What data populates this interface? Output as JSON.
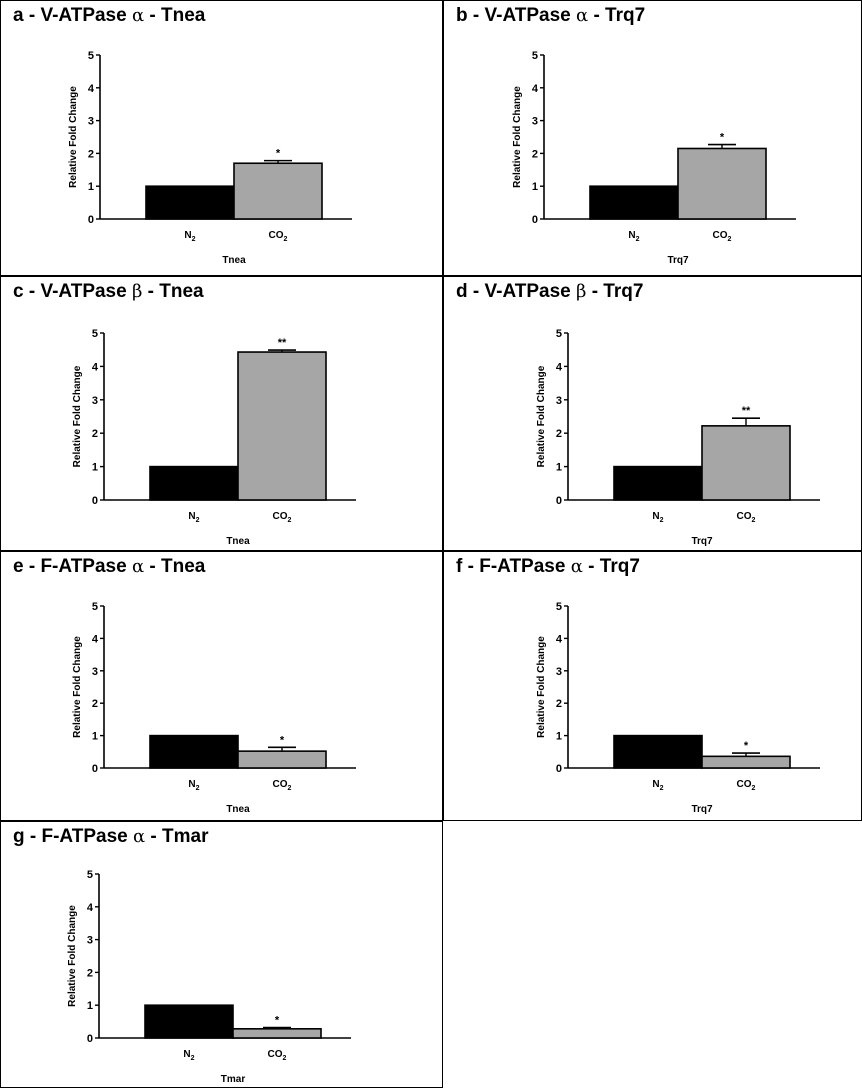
{
  "chart_data": [
    {
      "type": "bar",
      "panel": "a",
      "title_prefix": "a - V-ATPase ",
      "greek": "α",
      "title_suffix": " - Tnea",
      "ylabel": "Relative Fold Change",
      "xlabel": "Tnea",
      "ylim": [
        0,
        5
      ],
      "yticks": [
        "0",
        "1",
        "2",
        "3",
        "4",
        "5"
      ],
      "categories": [
        {
          "base": "N",
          "sub": "2"
        },
        {
          "base": "CO",
          "sub": "2"
        }
      ],
      "values": [
        1.0,
        1.7
      ],
      "errors": [
        0,
        0.08
      ],
      "significance": [
        "",
        "*"
      ],
      "bar_colors": [
        "#000000",
        "#a6a6a6"
      ]
    },
    {
      "type": "bar",
      "panel": "b",
      "title_prefix": "b - V-ATPase ",
      "greek": "α",
      "title_suffix": " - Trq7",
      "ylabel": "Relative Fold Change",
      "xlabel": "Trq7",
      "ylim": [
        0,
        5
      ],
      "yticks": [
        "0",
        "1",
        "2",
        "3",
        "4",
        "5"
      ],
      "categories": [
        {
          "base": "N",
          "sub": "2"
        },
        {
          "base": "CO",
          "sub": "2"
        }
      ],
      "values": [
        1.0,
        2.15
      ],
      "errors": [
        0,
        0.12
      ],
      "significance": [
        "",
        "*"
      ],
      "bar_colors": [
        "#000000",
        "#a6a6a6"
      ]
    },
    {
      "type": "bar",
      "panel": "c",
      "title_prefix": "c - V-ATPase ",
      "greek": "β",
      "title_suffix": " - Tnea",
      "ylabel": "Relative Fold Change",
      "xlabel": "Tnea",
      "ylim": [
        0,
        5
      ],
      "yticks": [
        "0",
        "1",
        "2",
        "3",
        "4",
        "5"
      ],
      "categories": [
        {
          "base": "N",
          "sub": "2"
        },
        {
          "base": "CO",
          "sub": "2"
        }
      ],
      "values": [
        1.0,
        4.43
      ],
      "errors": [
        0,
        0.06
      ],
      "significance": [
        "",
        "**"
      ],
      "bar_colors": [
        "#000000",
        "#a6a6a6"
      ]
    },
    {
      "type": "bar",
      "panel": "d",
      "title_prefix": "d - V-ATPase ",
      "greek": "β",
      "title_suffix": " - Trq7",
      "ylabel": "Relative Fold Change",
      "xlabel": "Trq7",
      "ylim": [
        0,
        5
      ],
      "yticks": [
        "0",
        "1",
        "2",
        "3",
        "4",
        "5"
      ],
      "categories": [
        {
          "base": "N",
          "sub": "2"
        },
        {
          "base": "CO",
          "sub": "2"
        }
      ],
      "values": [
        1.0,
        2.22
      ],
      "errors": [
        0,
        0.23
      ],
      "significance": [
        "",
        "**"
      ],
      "bar_colors": [
        "#000000",
        "#a6a6a6"
      ]
    },
    {
      "type": "bar",
      "panel": "e",
      "title_prefix": "e - F-ATPase ",
      "greek": "α",
      "title_suffix": " - Tnea",
      "ylabel": "Relative Fold Change",
      "xlabel": "Tnea",
      "ylim": [
        0,
        5
      ],
      "yticks": [
        "0",
        "1",
        "2",
        "3",
        "4",
        "5"
      ],
      "categories": [
        {
          "base": "N",
          "sub": "2"
        },
        {
          "base": "CO",
          "sub": "2"
        }
      ],
      "values": [
        1.0,
        0.52
      ],
      "errors": [
        0,
        0.12
      ],
      "significance": [
        "",
        "*"
      ],
      "bar_colors": [
        "#000000",
        "#a6a6a6"
      ]
    },
    {
      "type": "bar",
      "panel": "f",
      "title_prefix": "f - F-ATPase ",
      "greek": "α",
      "title_suffix": " - Trq7",
      "ylabel": "Relative Fold Change",
      "xlabel": "Trq7",
      "ylim": [
        0,
        5
      ],
      "yticks": [
        "0",
        "1",
        "2",
        "3",
        "4",
        "5"
      ],
      "categories": [
        {
          "base": "N",
          "sub": "2"
        },
        {
          "base": "CO",
          "sub": "2"
        }
      ],
      "values": [
        1.0,
        0.36
      ],
      "errors": [
        0,
        0.1
      ],
      "significance": [
        "",
        "*"
      ],
      "bar_colors": [
        "#000000",
        "#a6a6a6"
      ]
    },
    {
      "type": "bar",
      "panel": "g",
      "title_prefix": "g - F-ATPase ",
      "greek": "α",
      "title_suffix": " - Tmar",
      "ylabel": "Relative Fold Change",
      "xlabel": "Tmar",
      "ylim": [
        0,
        5
      ],
      "yticks": [
        "0",
        "1",
        "2",
        "3",
        "4",
        "5"
      ],
      "categories": [
        {
          "base": "N",
          "sub": "2"
        },
        {
          "base": "CO",
          "sub": "2"
        }
      ],
      "values": [
        1.0,
        0.28
      ],
      "errors": [
        0,
        0.04
      ],
      "significance": [
        "",
        "*"
      ],
      "bar_colors": [
        "#000000",
        "#a6a6a6"
      ]
    }
  ]
}
